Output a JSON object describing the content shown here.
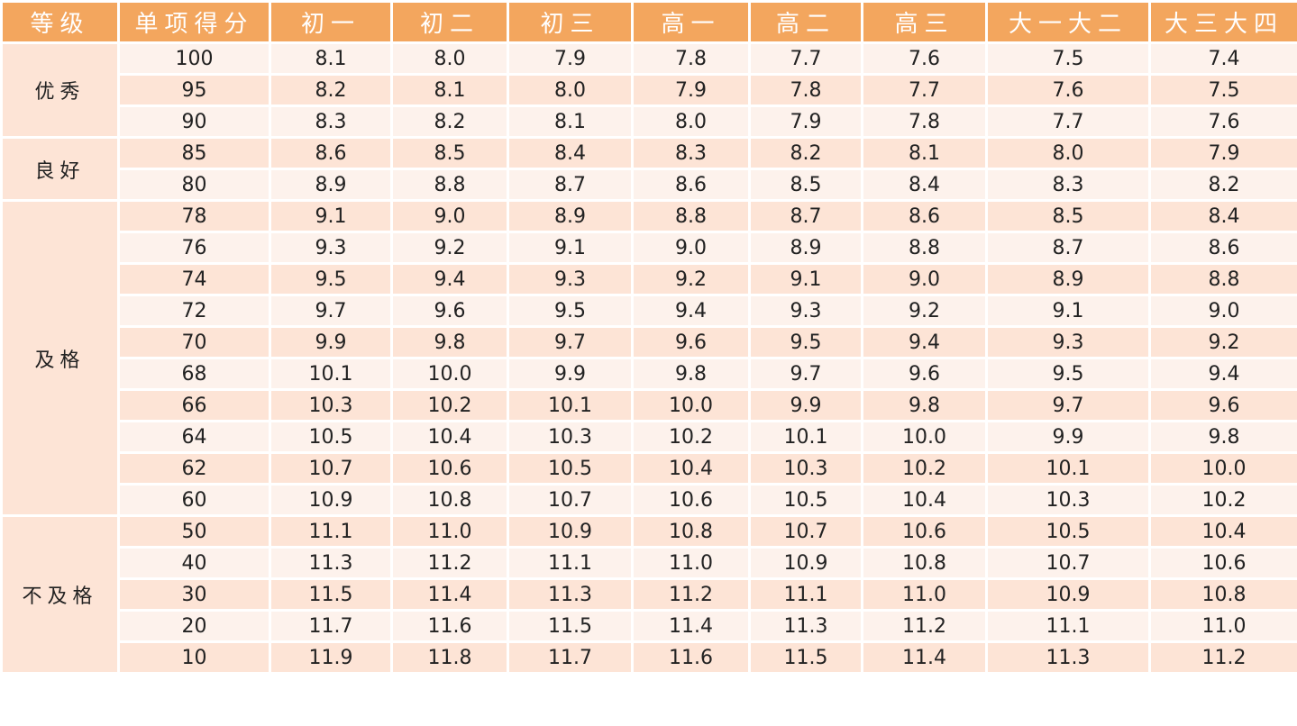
{
  "headers": [
    "等级",
    "单项得分",
    "初一",
    "初二",
    "初三",
    "高一",
    "高二",
    "高三",
    "大一大二",
    "大三大四"
  ],
  "groups": [
    {
      "label": "优秀",
      "rows": [
        [
          "100",
          "8.1",
          "8.0",
          "7.9",
          "7.8",
          "7.7",
          "7.6",
          "7.5",
          "7.4"
        ],
        [
          "95",
          "8.2",
          "8.1",
          "8.0",
          "7.9",
          "7.8",
          "7.7",
          "7.6",
          "7.5"
        ],
        [
          "90",
          "8.3",
          "8.2",
          "8.1",
          "8.0",
          "7.9",
          "7.8",
          "7.7",
          "7.6"
        ]
      ]
    },
    {
      "label": "良好",
      "rows": [
        [
          "85",
          "8.6",
          "8.5",
          "8.4",
          "8.3",
          "8.2",
          "8.1",
          "8.0",
          "7.9"
        ],
        [
          "80",
          "8.9",
          "8.8",
          "8.7",
          "8.6",
          "8.5",
          "8.4",
          "8.3",
          "8.2"
        ]
      ]
    },
    {
      "label": "及格",
      "rows": [
        [
          "78",
          "9.1",
          "9.0",
          "8.9",
          "8.8",
          "8.7",
          "8.6",
          "8.5",
          "8.4"
        ],
        [
          "76",
          "9.3",
          "9.2",
          "9.1",
          "9.0",
          "8.9",
          "8.8",
          "8.7",
          "8.6"
        ],
        [
          "74",
          "9.5",
          "9.4",
          "9.3",
          "9.2",
          "9.1",
          "9.0",
          "8.9",
          "8.8"
        ],
        [
          "72",
          "9.7",
          "9.6",
          "9.5",
          "9.4",
          "9.3",
          "9.2",
          "9.1",
          "9.0"
        ],
        [
          "70",
          "9.9",
          "9.8",
          "9.7",
          "9.6",
          "9.5",
          "9.4",
          "9.3",
          "9.2"
        ],
        [
          "68",
          "10.1",
          "10.0",
          "9.9",
          "9.8",
          "9.7",
          "9.6",
          "9.5",
          "9.4"
        ],
        [
          "66",
          "10.3",
          "10.2",
          "10.1",
          "10.0",
          "9.9",
          "9.8",
          "9.7",
          "9.6"
        ],
        [
          "64",
          "10.5",
          "10.4",
          "10.3",
          "10.2",
          "10.1",
          "10.0",
          "9.9",
          "9.8"
        ],
        [
          "62",
          "10.7",
          "10.6",
          "10.5",
          "10.4",
          "10.3",
          "10.2",
          "10.1",
          "10.0"
        ],
        [
          "60",
          "10.9",
          "10.8",
          "10.7",
          "10.6",
          "10.5",
          "10.4",
          "10.3",
          "10.2"
        ]
      ]
    },
    {
      "label": "不及格",
      "rows": [
        [
          "50",
          "11.1",
          "11.0",
          "10.9",
          "10.8",
          "10.7",
          "10.6",
          "10.5",
          "10.4"
        ],
        [
          "40",
          "11.3",
          "11.2",
          "11.1",
          "11.0",
          "10.9",
          "10.8",
          "10.7",
          "10.6"
        ],
        [
          "30",
          "11.5",
          "11.4",
          "11.3",
          "11.2",
          "11.1",
          "11.0",
          "10.9",
          "10.8"
        ],
        [
          "20",
          "11.7",
          "11.6",
          "11.5",
          "11.4",
          "11.3",
          "11.2",
          "11.1",
          "11.0"
        ],
        [
          "10",
          "11.9",
          "11.8",
          "11.7",
          "11.6",
          "11.5",
          "11.4",
          "11.3",
          "11.2"
        ]
      ]
    }
  ],
  "colors": {
    "header_bg": "#f3a65e",
    "row_light": "#fdf2ec",
    "row_dark": "#fde4d6",
    "header_text": "#ffffff"
  }
}
